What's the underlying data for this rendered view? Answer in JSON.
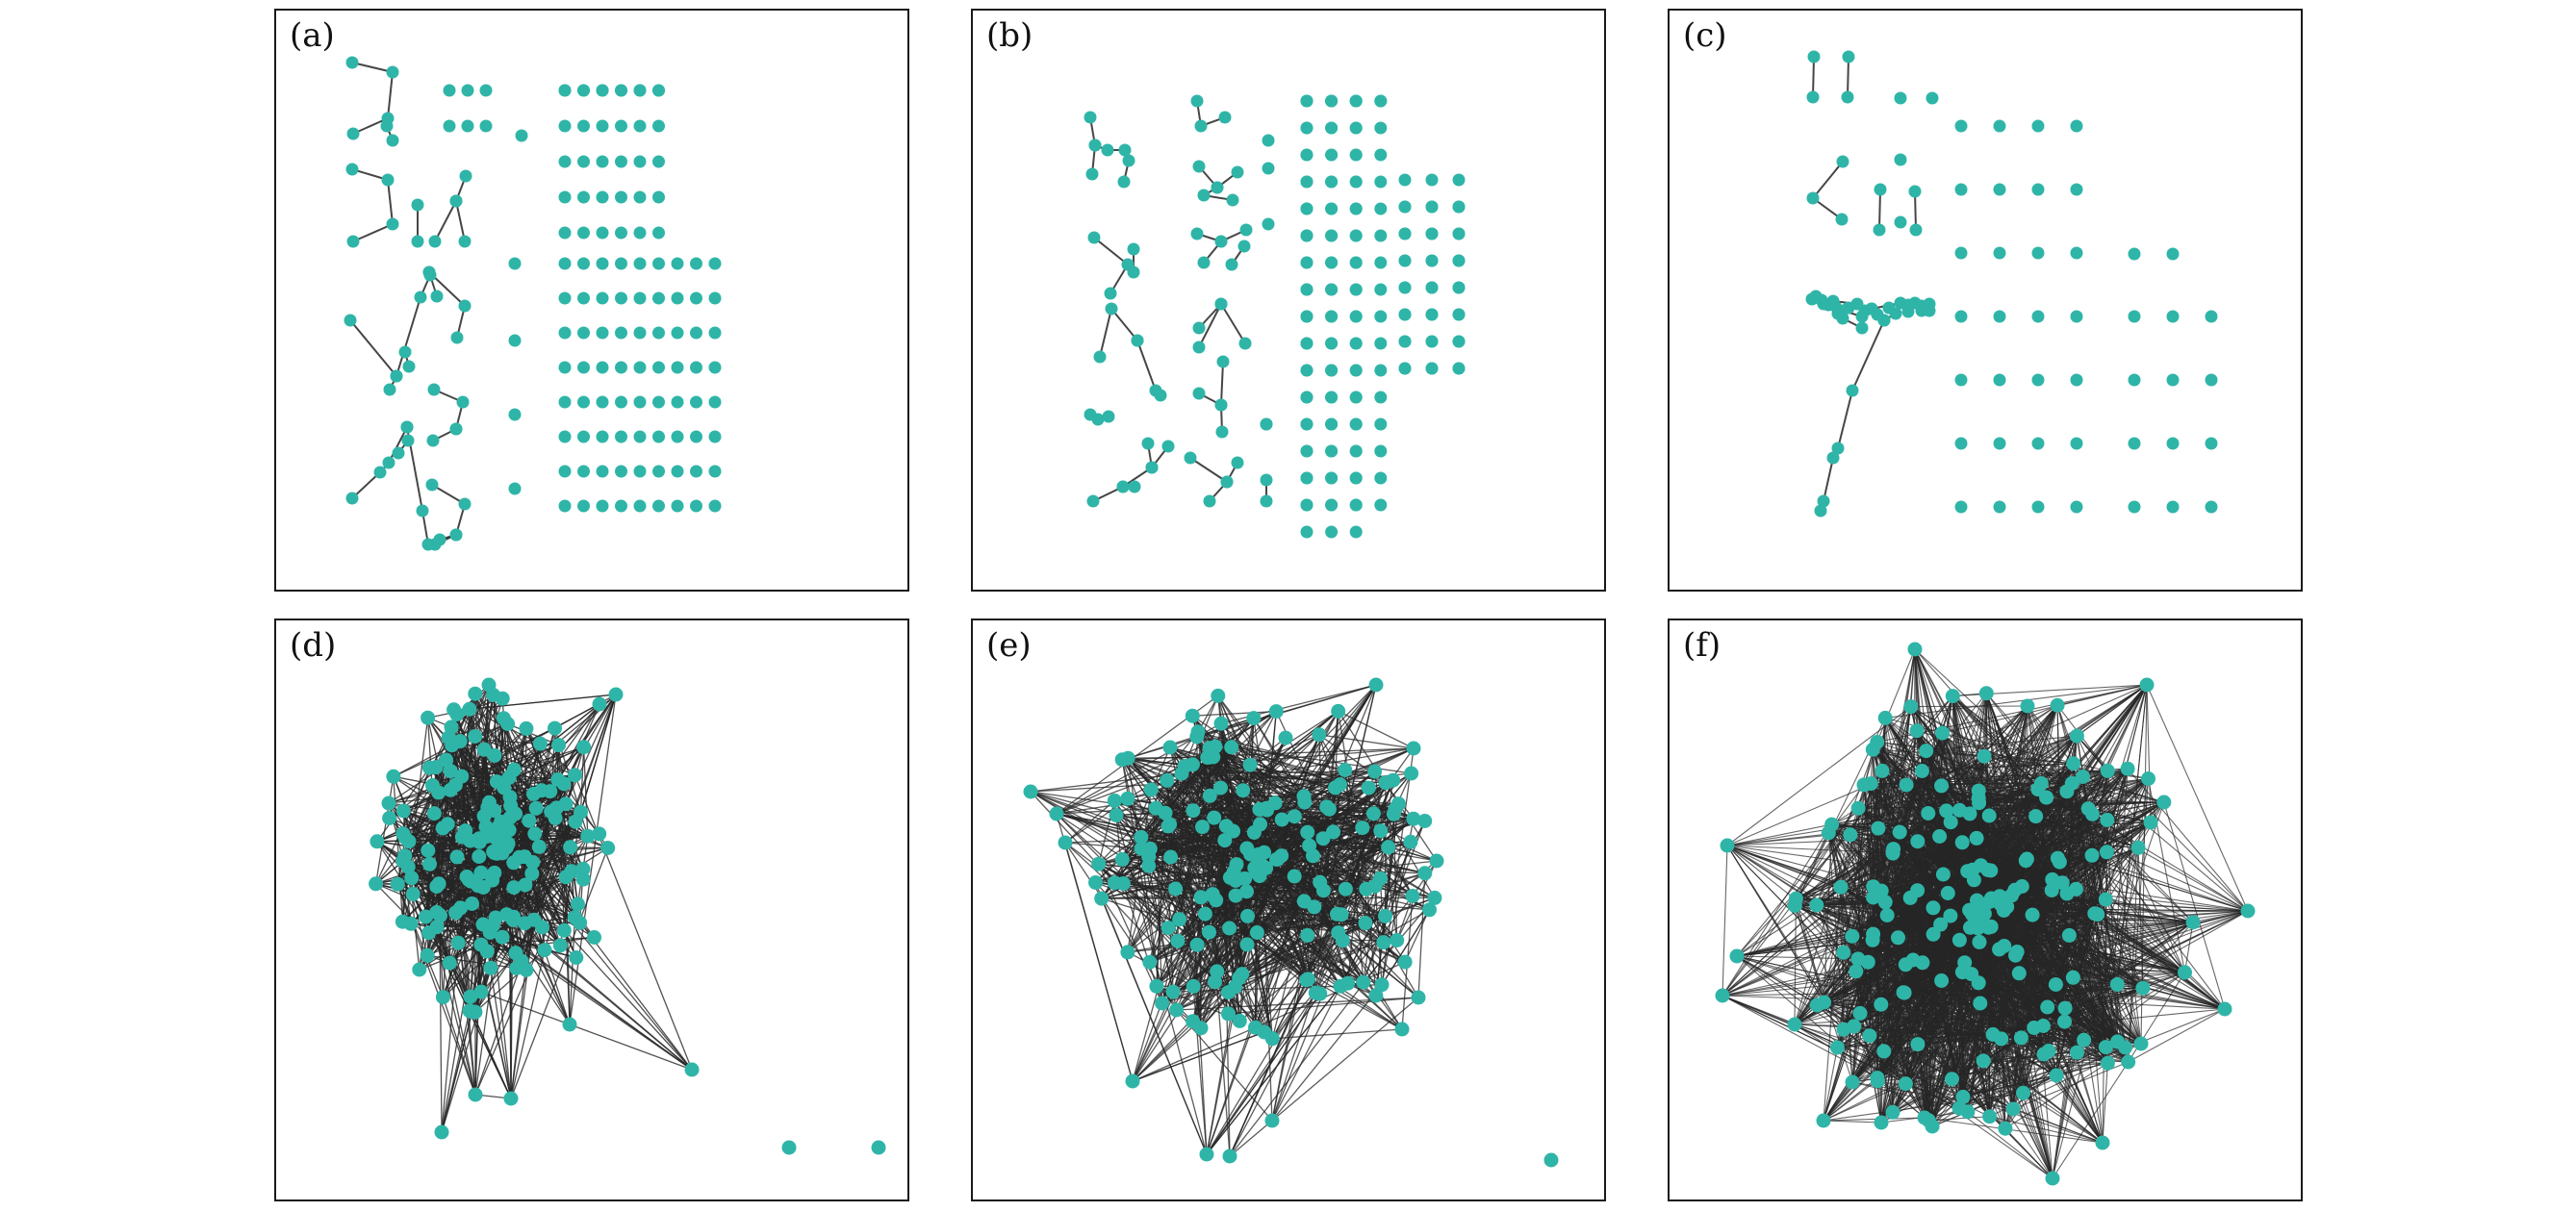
{
  "style": {
    "node_color": "#2fb5a8",
    "edge_color": "#262626",
    "border_color": "#1a1a1a"
  },
  "panels": [
    {
      "id": "a",
      "label": "(a)"
    },
    {
      "id": "b",
      "label": "(b)"
    },
    {
      "id": "c",
      "label": "(c)"
    },
    {
      "id": "d",
      "label": "(d)"
    },
    {
      "id": "e",
      "label": "(e)"
    },
    {
      "id": "f",
      "label": "(f)"
    }
  ]
}
